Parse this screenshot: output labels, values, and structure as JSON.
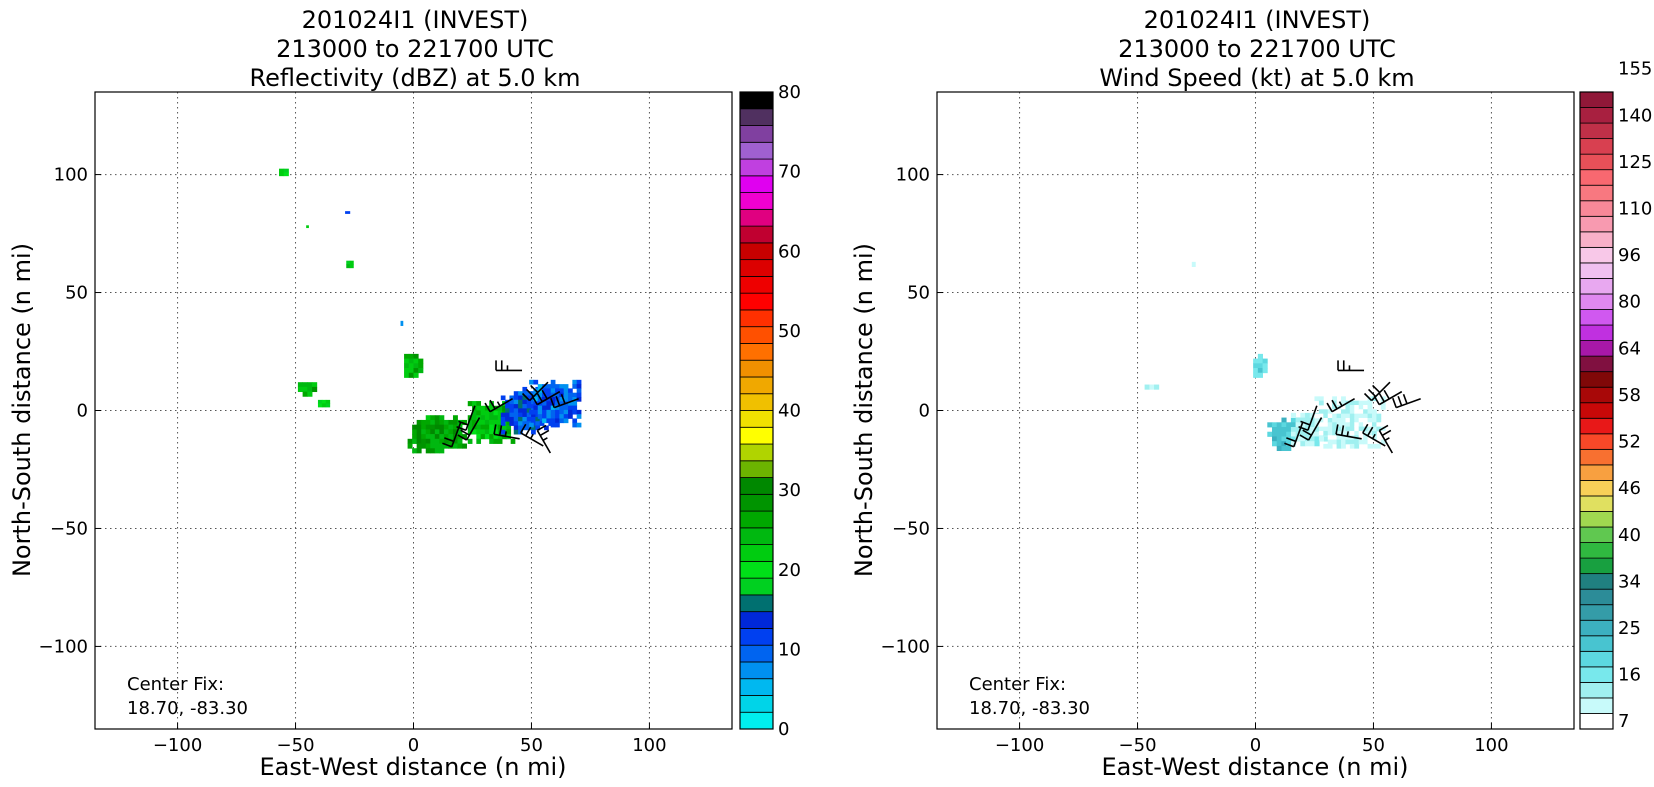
{
  "panels": [
    {
      "title_lines": [
        "201024I1 (INVEST)",
        "213000 to 221700 UTC",
        "Reflectivity (dBZ) at 5.0 km"
      ],
      "xlabel": "East-West distance (n mi)",
      "ylabel": "North-South distance (n mi)",
      "center_fix_label": "Center Fix:",
      "center_fix_value": "18.70, -83.30",
      "colorbar": {
        "colors": [
          "#00eeee",
          "#00d4e8",
          "#00b8f0",
          "#0090f0",
          "#0064f0",
          "#0040f0",
          "#0028d8",
          "#007070",
          "#00d020",
          "#00e018",
          "#00cc10",
          "#00b810",
          "#00a800",
          "#009400",
          "#008800",
          "#6cb400",
          "#b0d400",
          "#ffff00",
          "#f0e000",
          "#f0c000",
          "#f0a800",
          "#f09000",
          "#ff7000",
          "#ff5000",
          "#ff3000",
          "#ff0000",
          "#ee0000",
          "#dc0000",
          "#c80000",
          "#c00030",
          "#e00080",
          "#f000d0",
          "#e000f0",
          "#c040e0",
          "#a060d0",
          "#8040a0",
          "#503060",
          "#000000"
        ],
        "ticks": [
          "0",
          "10",
          "20",
          "30",
          "40",
          "50",
          "60",
          "70",
          "80"
        ]
      }
    },
    {
      "title_lines": [
        "201024I1 (INVEST)",
        "213000 to 221700 UTC",
        "Wind Speed (kt) at 5.0 km"
      ],
      "xlabel": "East-West distance (n mi)",
      "ylabel": "North-South distance (n mi)",
      "center_fix_label": "Center Fix:",
      "center_fix_value": "18.70, -83.30",
      "colorbar": {
        "colors": [
          "#ffffff",
          "#c8fafa",
          "#a0f0f0",
          "#78e8ec",
          "#5cd8e0",
          "#48c4d0",
          "#3cb0c0",
          "#349ca8",
          "#2c8c98",
          "#208080",
          "#18a040",
          "#30b840",
          "#60c850",
          "#a0d850",
          "#e0e060",
          "#f8d058",
          "#f8a040",
          "#f87030",
          "#f84828",
          "#e81818",
          "#c80808",
          "#a80808",
          "#800808",
          "#801040",
          "#a818a8",
          "#c030e0",
          "#d058f0",
          "#e088f0",
          "#e8a8f0",
          "#f0c0f0",
          "#f8c8e8",
          "#f8b0c8",
          "#f89ab0",
          "#f88898",
          "#f87880",
          "#f86870",
          "#e85058",
          "#d84050",
          "#c03048",
          "#a82040",
          "#901838"
        ],
        "ticks": [
          "7",
          "16",
          "25",
          "34",
          "40",
          "46",
          "52",
          "58",
          "64",
          "80",
          "96",
          "110",
          "125",
          "140",
          "155"
        ]
      }
    }
  ],
  "chart_data": [
    {
      "type": "heatmap",
      "title": "201024I1 (INVEST) 213000 to 221700 UTC Reflectivity (dBZ) at 5.0 km",
      "xlabel": "East-West distance (n mi)",
      "ylabel": "North-South distance (n mi)",
      "xlim": [
        -135,
        135
      ],
      "ylim": [
        -135,
        135
      ],
      "xticks": [
        -100,
        -50,
        0,
        50,
        100
      ],
      "yticks": [
        -100,
        -50,
        0,
        50,
        100
      ],
      "grid": true,
      "colorbar_range": [
        0,
        80
      ],
      "echo_regions": [
        {
          "x": -55,
          "y": 101,
          "w": 4,
          "h": 3,
          "value": 22
        },
        {
          "x": -45,
          "y": 78,
          "w": 1,
          "h": 1,
          "value": 22
        },
        {
          "x": -28,
          "y": 84,
          "w": 2,
          "h": 1,
          "value": 12
        },
        {
          "x": -27,
          "y": 62,
          "w": 3,
          "h": 3,
          "value": 22
        },
        {
          "x": -5,
          "y": 37,
          "w": 1,
          "h": 2,
          "value": 10
        },
        {
          "x": 0,
          "y": 19,
          "w": 8,
          "h": 10,
          "value": 25
        },
        {
          "x": -45,
          "y": 9,
          "w": 8,
          "h": 6,
          "value": 25
        },
        {
          "x": -38,
          "y": 3,
          "w": 5,
          "h": 3,
          "value": 20
        },
        {
          "x": 10,
          "y": -10,
          "w": 25,
          "h": 16,
          "value": 27
        },
        {
          "x": 33,
          "y": -5,
          "w": 20,
          "h": 18,
          "value": 24
        },
        {
          "x": 48,
          "y": 0,
          "w": 22,
          "h": 20,
          "value": 12
        },
        {
          "x": 60,
          "y": 3,
          "w": 22,
          "h": 20,
          "value": 10
        }
      ],
      "wind_barbs": [
        {
          "x": 20,
          "y": -5,
          "direction_deg": 200,
          "speed_kt": 20
        },
        {
          "x": 26,
          "y": 2,
          "direction_deg": 200,
          "speed_kt": 20
        },
        {
          "x": 42,
          "y": 5,
          "direction_deg": 240,
          "speed_kt": 25
        },
        {
          "x": 46,
          "y": 17,
          "direction_deg": 270,
          "speed_kt": 25
        },
        {
          "x": 57,
          "y": 12,
          "direction_deg": 225,
          "speed_kt": 30
        },
        {
          "x": 62,
          "y": 8,
          "direction_deg": 240,
          "speed_kt": 30
        },
        {
          "x": 70,
          "y": 5,
          "direction_deg": 250,
          "speed_kt": 30
        },
        {
          "x": 45,
          "y": -12,
          "direction_deg": 280,
          "speed_kt": 25
        },
        {
          "x": 55,
          "y": -15,
          "direction_deg": 300,
          "speed_kt": 25
        },
        {
          "x": 58,
          "y": -18,
          "direction_deg": 330,
          "speed_kt": 25
        },
        {
          "x": 28,
          "y": -3,
          "direction_deg": 210,
          "speed_kt": 20
        }
      ]
    },
    {
      "type": "heatmap",
      "title": "201024I1 (INVEST) 213000 to 221700 UTC Wind Speed (kt) at 5.0 km",
      "xlabel": "East-West distance (n mi)",
      "ylabel": "North-South distance (n mi)",
      "xlim": [
        -135,
        135
      ],
      "ylim": [
        -135,
        135
      ],
      "xticks": [
        -100,
        -50,
        0,
        50,
        100
      ],
      "yticks": [
        -100,
        -50,
        0,
        50,
        100
      ],
      "grid": true,
      "colorbar_range": [
        7,
        160
      ],
      "echo_regions": [
        {
          "x": -27,
          "y": 62,
          "w": 3,
          "h": 2,
          "value": 14
        },
        {
          "x": 2,
          "y": 19,
          "w": 6,
          "h": 10,
          "value": 22
        },
        {
          "x": -44,
          "y": 10,
          "w": 6,
          "h": 2,
          "value": 15
        },
        {
          "x": 12,
          "y": -10,
          "w": 14,
          "h": 14,
          "value": 27
        },
        {
          "x": 24,
          "y": -8,
          "w": 18,
          "h": 14,
          "value": 15
        },
        {
          "x": 40,
          "y": -5,
          "w": 30,
          "h": 22,
          "value": 13
        }
      ],
      "wind_barbs": [
        {
          "x": 20,
          "y": -5,
          "direction_deg": 200,
          "speed_kt": 20
        },
        {
          "x": 26,
          "y": 2,
          "direction_deg": 200,
          "speed_kt": 20
        },
        {
          "x": 42,
          "y": 5,
          "direction_deg": 240,
          "speed_kt": 25
        },
        {
          "x": 46,
          "y": 17,
          "direction_deg": 270,
          "speed_kt": 25
        },
        {
          "x": 57,
          "y": 12,
          "direction_deg": 225,
          "speed_kt": 30
        },
        {
          "x": 62,
          "y": 8,
          "direction_deg": 240,
          "speed_kt": 30
        },
        {
          "x": 70,
          "y": 5,
          "direction_deg": 250,
          "speed_kt": 30
        },
        {
          "x": 45,
          "y": -12,
          "direction_deg": 280,
          "speed_kt": 25
        },
        {
          "x": 55,
          "y": -15,
          "direction_deg": 300,
          "speed_kt": 25
        },
        {
          "x": 58,
          "y": -18,
          "direction_deg": 330,
          "speed_kt": 25
        },
        {
          "x": 28,
          "y": -3,
          "direction_deg": 210,
          "speed_kt": 20
        }
      ]
    }
  ]
}
